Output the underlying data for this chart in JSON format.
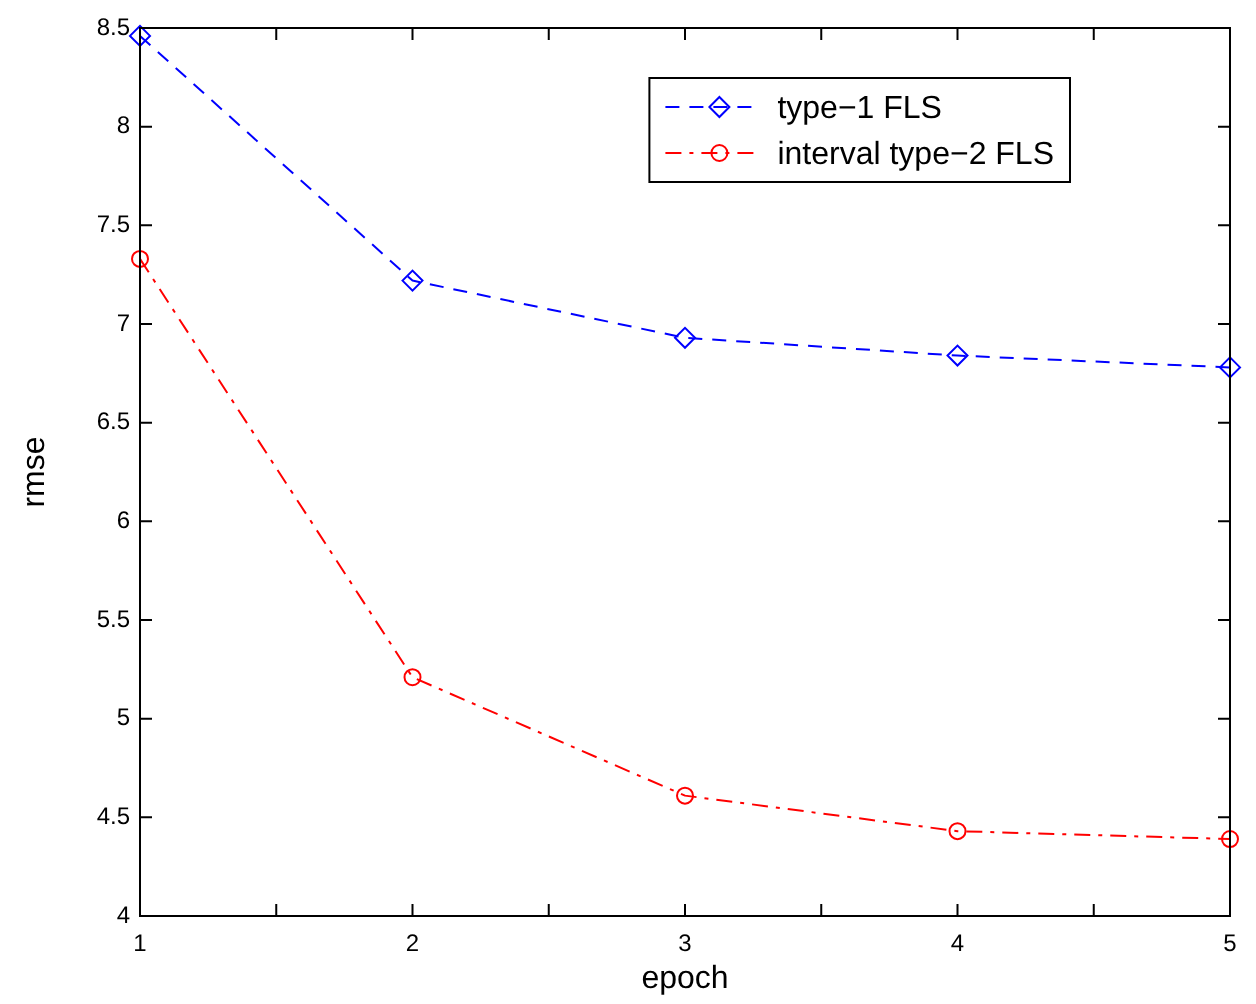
{
  "chart_data": {
    "type": "line",
    "xlabel": "epoch",
    "ylabel": "rmse",
    "x": [
      1,
      2,
      3,
      4,
      5
    ],
    "series": [
      {
        "name": "type−1 FLS",
        "color": "#0000ff",
        "values": [
          8.46,
          7.22,
          6.93,
          6.84,
          6.78
        ],
        "marker": "diamond",
        "line_style": "dashed"
      },
      {
        "name": "interval type−2 FLS",
        "color": "#ff0000",
        "values": [
          7.33,
          5.21,
          4.61,
          4.43,
          4.39
        ],
        "marker": "circle",
        "line_style": "dashdot"
      }
    ],
    "xlim": [
      1,
      5
    ],
    "xticks": [
      1,
      {
        "value": 1.5,
        "label": null
      },
      2,
      {
        "value": 2.5,
        "label": null
      },
      3,
      {
        "value": 3.5,
        "label": null
      },
      4,
      {
        "value": 4.5,
        "label": null
      },
      5
    ],
    "ylim": [
      4,
      8.5
    ],
    "yticks": [
      4,
      4.5,
      5,
      5.5,
      6,
      6.5,
      7,
      7.5,
      8,
      8.5
    ],
    "grid": false,
    "legend": "top right"
  }
}
